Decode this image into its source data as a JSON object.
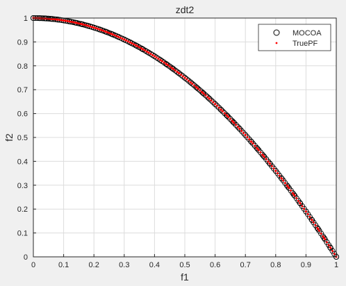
{
  "chart_data": {
    "type": "scatter",
    "title": "zdt2",
    "xlabel": "f1",
    "ylabel": "f2",
    "xlim": [
      0,
      1
    ],
    "ylim": [
      0,
      1
    ],
    "xticks": [
      "0",
      "0.1",
      "0.2",
      "0.3",
      "0.4",
      "0.5",
      "0.6",
      "0.7",
      "0.8",
      "0.9",
      "1"
    ],
    "yticks": [
      "0",
      "0.1",
      "0.2",
      "0.3",
      "0.4",
      "0.5",
      "0.6",
      "0.7",
      "0.8",
      "0.9",
      "1"
    ],
    "grid": true,
    "legend_position": "top-right",
    "series": [
      {
        "name": "MOCOA",
        "marker": "circle-open",
        "color": "#000000",
        "relation": "f2 = 1 - f1^2",
        "x": [
          0,
          0.02,
          0.04,
          0.06,
          0.08,
          0.1,
          0.12,
          0.14,
          0.16,
          0.18,
          0.2,
          0.22,
          0.24,
          0.26,
          0.28,
          0.3,
          0.32,
          0.34,
          0.36,
          0.38,
          0.4,
          0.42,
          0.44,
          0.46,
          0.48,
          0.5,
          0.52,
          0.54,
          0.56,
          0.58,
          0.6,
          0.62,
          0.64,
          0.66,
          0.68,
          0.7,
          0.72,
          0.74,
          0.76,
          0.78,
          0.8,
          0.82,
          0.84,
          0.86,
          0.88,
          0.9,
          0.92,
          0.94,
          0.96,
          0.98,
          1
        ],
        "y": [
          1,
          0.9996,
          0.9984,
          0.9964,
          0.9936,
          0.99,
          0.9856,
          0.9804,
          0.9744,
          0.9676,
          0.96,
          0.9516,
          0.9424,
          0.9324,
          0.9216,
          0.91,
          0.8976,
          0.8844,
          0.8704,
          0.8556,
          0.84,
          0.8236,
          0.8064,
          0.7884,
          0.7696,
          0.75,
          0.7296,
          0.7084,
          0.6864,
          0.6636,
          0.64,
          0.6156,
          0.5904,
          0.5644,
          0.5376,
          0.51,
          0.4816,
          0.4524,
          0.4224,
          0.3916,
          0.36,
          0.3276,
          0.2944,
          0.2604,
          0.2256,
          0.19,
          0.1536,
          0.1164,
          0.0784,
          0.0396,
          0
        ]
      },
      {
        "name": "TruePF",
        "marker": "dot",
        "color": "#ff0000",
        "relation": "f2 = 1 - f1^2",
        "x": [
          0,
          0.02,
          0.04,
          0.06,
          0.08,
          0.1,
          0.12,
          0.14,
          0.16,
          0.18,
          0.2,
          0.22,
          0.24,
          0.26,
          0.28,
          0.3,
          0.32,
          0.34,
          0.36,
          0.38,
          0.4,
          0.42,
          0.44,
          0.46,
          0.48,
          0.5,
          0.52,
          0.54,
          0.56,
          0.58,
          0.6,
          0.62,
          0.64,
          0.66,
          0.68,
          0.7,
          0.72,
          0.74,
          0.76,
          0.78,
          0.8,
          0.82,
          0.84,
          0.86,
          0.88,
          0.9,
          0.92,
          0.94,
          0.96,
          0.98,
          1
        ],
        "y": [
          1,
          0.9996,
          0.9984,
          0.9964,
          0.9936,
          0.99,
          0.9856,
          0.9804,
          0.9744,
          0.9676,
          0.96,
          0.9516,
          0.9424,
          0.9324,
          0.9216,
          0.91,
          0.8976,
          0.8844,
          0.8704,
          0.8556,
          0.84,
          0.8236,
          0.8064,
          0.7884,
          0.7696,
          0.75,
          0.7296,
          0.7084,
          0.6864,
          0.6636,
          0.64,
          0.6156,
          0.5904,
          0.5644,
          0.5376,
          0.51,
          0.4816,
          0.4524,
          0.4224,
          0.3916,
          0.36,
          0.3276,
          0.2944,
          0.2604,
          0.2256,
          0.19,
          0.1536,
          0.1164,
          0.0784,
          0.0396,
          0
        ]
      }
    ]
  }
}
